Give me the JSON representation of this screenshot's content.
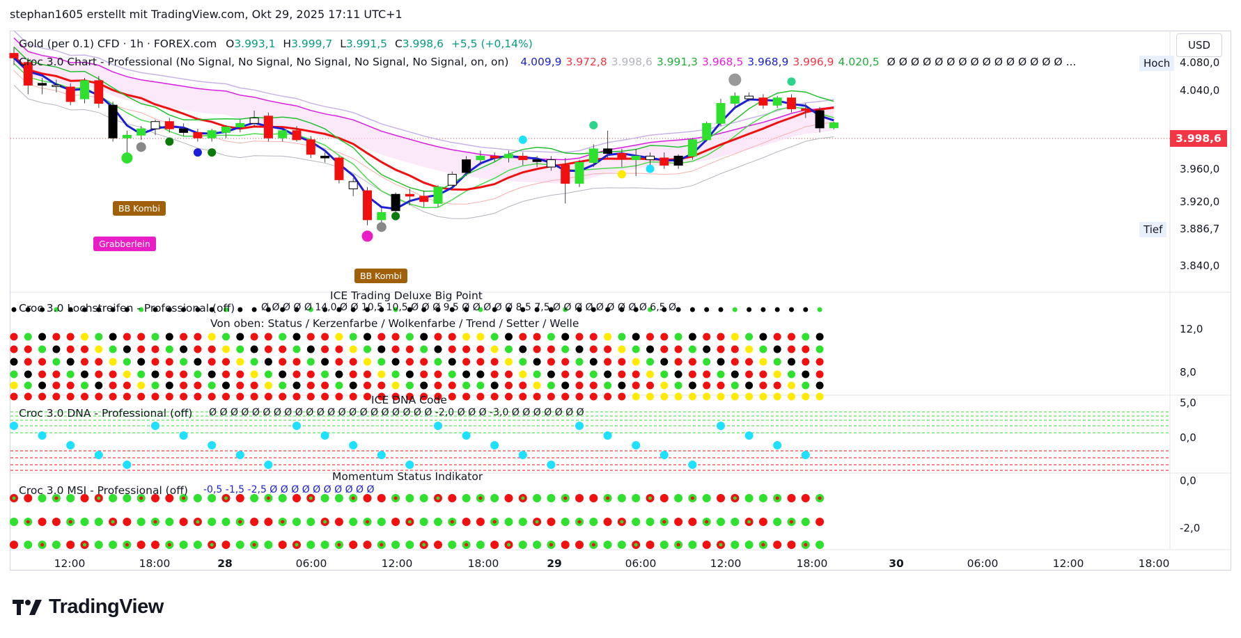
{
  "attribution": "stephan1605 erstellt mit TradingView.com, Okt 29, 2025 17:11 UTC+1",
  "currency_button": "USD",
  "symbol_legend": {
    "name": "Gold (per 0.1) CFD · 1h · FOREX.com",
    "o_label": "O",
    "o_value": "3.993,1",
    "h_label": "H",
    "h_value": "3.999,7",
    "l_label": "L",
    "l_value": "3.991,5",
    "c_label": "C",
    "c_value": "3.998,6",
    "change": "+5,5 (+0,14%)"
  },
  "indicator_legend": {
    "name": "Croc 3.0 Chart - Professional (No Signal, No Signal, No Signal, No Signal, No Signal, on, on)",
    "values": [
      {
        "text": "4.009,9",
        "color": "#1a1fd6"
      },
      {
        "text": "3.972,8",
        "color": "#f23645"
      },
      {
        "text": "3.998,6",
        "color": "#b2b5be"
      },
      {
        "text": "3.991,3",
        "color": "#22ab3a"
      },
      {
        "text": "3.968,5",
        "color": "#e91ee0"
      },
      {
        "text": "3.968,9",
        "color": "#1a1fd6"
      },
      {
        "text": "3.996,9",
        "color": "#f23645"
      },
      {
        "text": "4.020,5",
        "color": "#22ab3a"
      }
    ],
    "trailing": "Ø Ø Ø Ø Ø Ø Ø Ø Ø Ø Ø Ø Ø Ø Ø ..."
  },
  "price_scale": {
    "ticks": [
      "4.080,0",
      "4.040,0",
      "3.960,0",
      "3.920,0",
      "3.840,0"
    ],
    "current_price": "3.998,6",
    "high_label": "Hoch",
    "high_value": "4.080,0",
    "low_label": "Tief",
    "low_value": "3.886,7"
  },
  "panels": {
    "lochstreifen": {
      "title": "ICE Trading Deluxe Big Point",
      "name": "Croc 3.0 Lochstreifen - Professional (off)",
      "values": "Ø Ø Ø Ø Ø 14,0 Ø Ø 10,5 10,5 Ø Ø Ø 9,5 Ø Ø Ø Ø Ø 8,5 7,5 Ø Ø Ø Ø Ø Ø Ø Ø Ø 6,5 Ø",
      "subtitle": "Von oben: Status / Kerzenfarbe / Wolkenfarbe / Trend / Setter / Welle",
      "ticks": [
        "12,0",
        "8,0"
      ]
    },
    "dna": {
      "title": "ICE DNA Code",
      "name": "Croc 3.0 DNA - Professional (off)",
      "values": "Ø Ø Ø Ø Ø Ø Ø Ø Ø Ø Ø Ø Ø Ø Ø Ø Ø Ø Ø Ø Ø -2,0 Ø Ø Ø -3,0 Ø Ø Ø Ø Ø Ø Ø",
      "ticks": [
        "5,0",
        "0,0"
      ]
    },
    "msi": {
      "title": "Momentum Status Indikator",
      "name": "Croc 3.0 MSI - Professional (off)",
      "values": "-0,5 -1,5 -2,5 Ø Ø Ø Ø Ø Ø Ø Ø Ø Ø",
      "ticks": [
        "0,0",
        "-2,0"
      ]
    }
  },
  "time_axis": [
    {
      "label": "12:00",
      "bold": false
    },
    {
      "label": "18:00",
      "bold": false
    },
    {
      "label": "28",
      "bold": true
    },
    {
      "label": "06:00",
      "bold": false
    },
    {
      "label": "12:00",
      "bold": false
    },
    {
      "label": "18:00",
      "bold": false
    },
    {
      "label": "29",
      "bold": true
    },
    {
      "label": "06:00",
      "bold": false
    },
    {
      "label": "12:00",
      "bold": false
    },
    {
      "label": "18:00",
      "bold": false
    },
    {
      "label": "30",
      "bold": true
    },
    {
      "label": "06:00",
      "bold": false
    },
    {
      "label": "12:00",
      "bold": false
    },
    {
      "label": "18:00",
      "bold": false
    }
  ],
  "markers": [
    {
      "label": "BB Kombi",
      "color": "#a0600a"
    },
    {
      "label": "Grabberlein",
      "color": "#e91ec6"
    },
    {
      "label": "BB Kombi",
      "color": "#a0600a"
    }
  ],
  "logo_text": "TradingView",
  "chart_data": {
    "type": "candlestick",
    "symbol": "Gold (per 0.1) CFD",
    "timeframe": "1h",
    "ylim": [
      3820,
      4100
    ],
    "last_price": 3998.6,
    "candles": [
      {
        "o": 4075,
        "h": 4082,
        "l": 4062,
        "c": 4070
      },
      {
        "o": 4065,
        "h": 4070,
        "l": 4030,
        "c": 4040
      },
      {
        "o": 4040,
        "h": 4048,
        "l": 4030,
        "c": 4042
      },
      {
        "o": 4040,
        "h": 4046,
        "l": 4032,
        "c": 4040
      },
      {
        "o": 4038,
        "h": 4042,
        "l": 4018,
        "c": 4022
      },
      {
        "o": 4025,
        "h": 4048,
        "l": 4020,
        "c": 4045
      },
      {
        "o": 4045,
        "h": 4050,
        "l": 4015,
        "c": 4020
      },
      {
        "o": 4018,
        "h": 4022,
        "l": 3978,
        "c": 3982
      },
      {
        "o": 3982,
        "h": 3990,
        "l": 3960,
        "c": 3985
      },
      {
        "o": 3985,
        "h": 3995,
        "l": 3980,
        "c": 3992
      },
      {
        "o": 3992,
        "h": 4002,
        "l": 3985,
        "c": 4000
      },
      {
        "o": 4000,
        "h": 4004,
        "l": 3988,
        "c": 3992
      },
      {
        "o": 3992,
        "h": 3998,
        "l": 3984,
        "c": 3988
      },
      {
        "o": 3988,
        "h": 3992,
        "l": 3978,
        "c": 3982
      },
      {
        "o": 3982,
        "h": 3992,
        "l": 3978,
        "c": 3990
      },
      {
        "o": 3988,
        "h": 3996,
        "l": 3982,
        "c": 3994
      },
      {
        "o": 3994,
        "h": 4002,
        "l": 3988,
        "c": 3998
      },
      {
        "o": 3998,
        "h": 4012,
        "l": 3994,
        "c": 4004
      },
      {
        "o": 4006,
        "h": 4010,
        "l": 3978,
        "c": 3982
      },
      {
        "o": 3982,
        "h": 3992,
        "l": 3978,
        "c": 3990
      },
      {
        "o": 3990,
        "h": 3995,
        "l": 3978,
        "c": 3980
      },
      {
        "o": 3980,
        "h": 3984,
        "l": 3960,
        "c": 3964
      },
      {
        "o": 3962,
        "h": 3966,
        "l": 3955,
        "c": 3960
      },
      {
        "o": 3960,
        "h": 3962,
        "l": 3932,
        "c": 3936
      },
      {
        "o": 3934,
        "h": 3938,
        "l": 3918,
        "c": 3926
      },
      {
        "o": 3924,
        "h": 3928,
        "l": 3886,
        "c": 3892
      },
      {
        "o": 3892,
        "h": 3905,
        "l": 3887,
        "c": 3900
      },
      {
        "o": 3902,
        "h": 3922,
        "l": 3898,
        "c": 3920
      },
      {
        "o": 3920,
        "h": 3926,
        "l": 3908,
        "c": 3918
      },
      {
        "o": 3918,
        "h": 3924,
        "l": 3906,
        "c": 3912
      },
      {
        "o": 3910,
        "h": 3930,
        "l": 3906,
        "c": 3928
      },
      {
        "o": 3930,
        "h": 3945,
        "l": 3926,
        "c": 3942
      },
      {
        "o": 3944,
        "h": 3962,
        "l": 3940,
        "c": 3958
      },
      {
        "o": 3958,
        "h": 3968,
        "l": 3952,
        "c": 3962
      },
      {
        "o": 3962,
        "h": 3966,
        "l": 3956,
        "c": 3960
      },
      {
        "o": 3960,
        "h": 3968,
        "l": 3955,
        "c": 3964
      },
      {
        "o": 3962,
        "h": 3966,
        "l": 3952,
        "c": 3958
      },
      {
        "o": 3958,
        "h": 3962,
        "l": 3950,
        "c": 3956
      },
      {
        "o": 3958,
        "h": 3962,
        "l": 3946,
        "c": 3950
      },
      {
        "o": 3952,
        "h": 3960,
        "l": 3910,
        "c": 3932
      },
      {
        "o": 3932,
        "h": 3958,
        "l": 3928,
        "c": 3955
      },
      {
        "o": 3955,
        "h": 3975,
        "l": 3950,
        "c": 3970
      },
      {
        "o": 3970,
        "h": 3990,
        "l": 3960,
        "c": 3965
      },
      {
        "o": 3965,
        "h": 3970,
        "l": 3950,
        "c": 3960
      },
      {
        "o": 3958,
        "h": 3970,
        "l": 3940,
        "c": 3962
      },
      {
        "o": 3962,
        "h": 3966,
        "l": 3950,
        "c": 3958
      },
      {
        "o": 3960,
        "h": 3966,
        "l": 3948,
        "c": 3952
      },
      {
        "o": 3952,
        "h": 3964,
        "l": 3948,
        "c": 3962
      },
      {
        "o": 3962,
        "h": 3982,
        "l": 3958,
        "c": 3980
      },
      {
        "o": 3980,
        "h": 4000,
        "l": 3978,
        "c": 3998
      },
      {
        "o": 3998,
        "h": 4025,
        "l": 3995,
        "c": 4020
      },
      {
        "o": 4020,
        "h": 4032,
        "l": 4015,
        "c": 4028
      },
      {
        "o": 4028,
        "h": 4032,
        "l": 4022,
        "c": 4025
      },
      {
        "o": 4026,
        "h": 4030,
        "l": 4014,
        "c": 4018
      },
      {
        "o": 4018,
        "h": 4028,
        "l": 4015,
        "c": 4026
      },
      {
        "o": 4026,
        "h": 4030,
        "l": 4010,
        "c": 4014
      },
      {
        "o": 4014,
        "h": 4020,
        "l": 4004,
        "c": 4012
      },
      {
        "o": 4012,
        "h": 4016,
        "l": 3988,
        "c": 3993
      },
      {
        "o": 3993.1,
        "h": 3999.7,
        "l": 3991.5,
        "c": 3998.6
      }
    ]
  }
}
